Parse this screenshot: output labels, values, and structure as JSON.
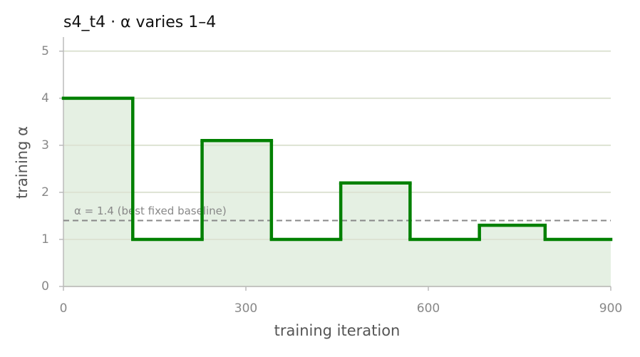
{
  "chart_data": {
    "type": "step",
    "title": "s4_t4   ·   α varies 1–4",
    "xlabel": "training iteration",
    "ylabel": "training α",
    "x_edges": [
      0,
      114,
      228,
      342,
      456,
      570,
      684,
      792,
      900
    ],
    "values": [
      4,
      1,
      3.1,
      1,
      2.2,
      1,
      1.3,
      1
    ],
    "color": "#008000",
    "fill_color": "#e5f0e3",
    "xlim": [
      0,
      900
    ],
    "xticks": [
      0,
      300,
      600,
      900
    ],
    "ylim": [
      0,
      5.3
    ],
    "yticks": [
      0,
      1,
      2,
      3,
      4,
      5
    ],
    "grid": true,
    "reference_line": {
      "value": 1.4,
      "label": "α = 1.4 (best fixed baseline)"
    }
  }
}
